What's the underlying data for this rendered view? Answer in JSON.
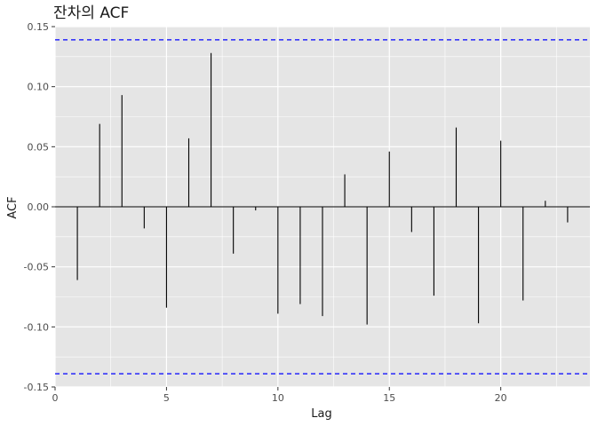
{
  "chart_data": {
    "type": "bar",
    "title": "잔차의 ACF",
    "xlabel": "Lag",
    "ylabel": "ACF",
    "xlim": [
      0,
      24
    ],
    "ylim": [
      -0.15,
      0.15
    ],
    "x_ticks": [
      0,
      5,
      10,
      15,
      20
    ],
    "x_tick_labels": [
      "0",
      "5",
      "10",
      "15",
      "20"
    ],
    "y_ticks": [
      0.15,
      0.1,
      0.05,
      0.0,
      -0.05,
      -0.1,
      -0.15
    ],
    "y_tick_labels": [
      "0.15",
      "0.10",
      "0.05",
      "0.00",
      "-0.05",
      "-0.10",
      "-0.15"
    ],
    "grid": true,
    "confidence_limits": [
      0.139,
      -0.139
    ],
    "colors": {
      "panel": "#e5e5e5",
      "grid": "#ffffff",
      "bar": "#000000",
      "confidence": "#0000ff"
    },
    "series": [
      {
        "x": [
          1,
          2,
          3,
          4,
          5,
          6,
          7,
          8,
          9,
          10,
          11,
          12,
          13,
          14,
          15,
          16,
          17,
          18,
          19,
          20,
          21,
          22,
          23
        ],
        "values": [
          -0.061,
          0.069,
          0.093,
          -0.018,
          -0.084,
          0.057,
          0.128,
          -0.039,
          -0.003,
          -0.089,
          -0.081,
          -0.091,
          0.027,
          -0.098,
          0.046,
          -0.021,
          -0.074,
          0.066,
          -0.097,
          0.055,
          -0.078,
          0.005,
          -0.013
        ]
      }
    ]
  }
}
